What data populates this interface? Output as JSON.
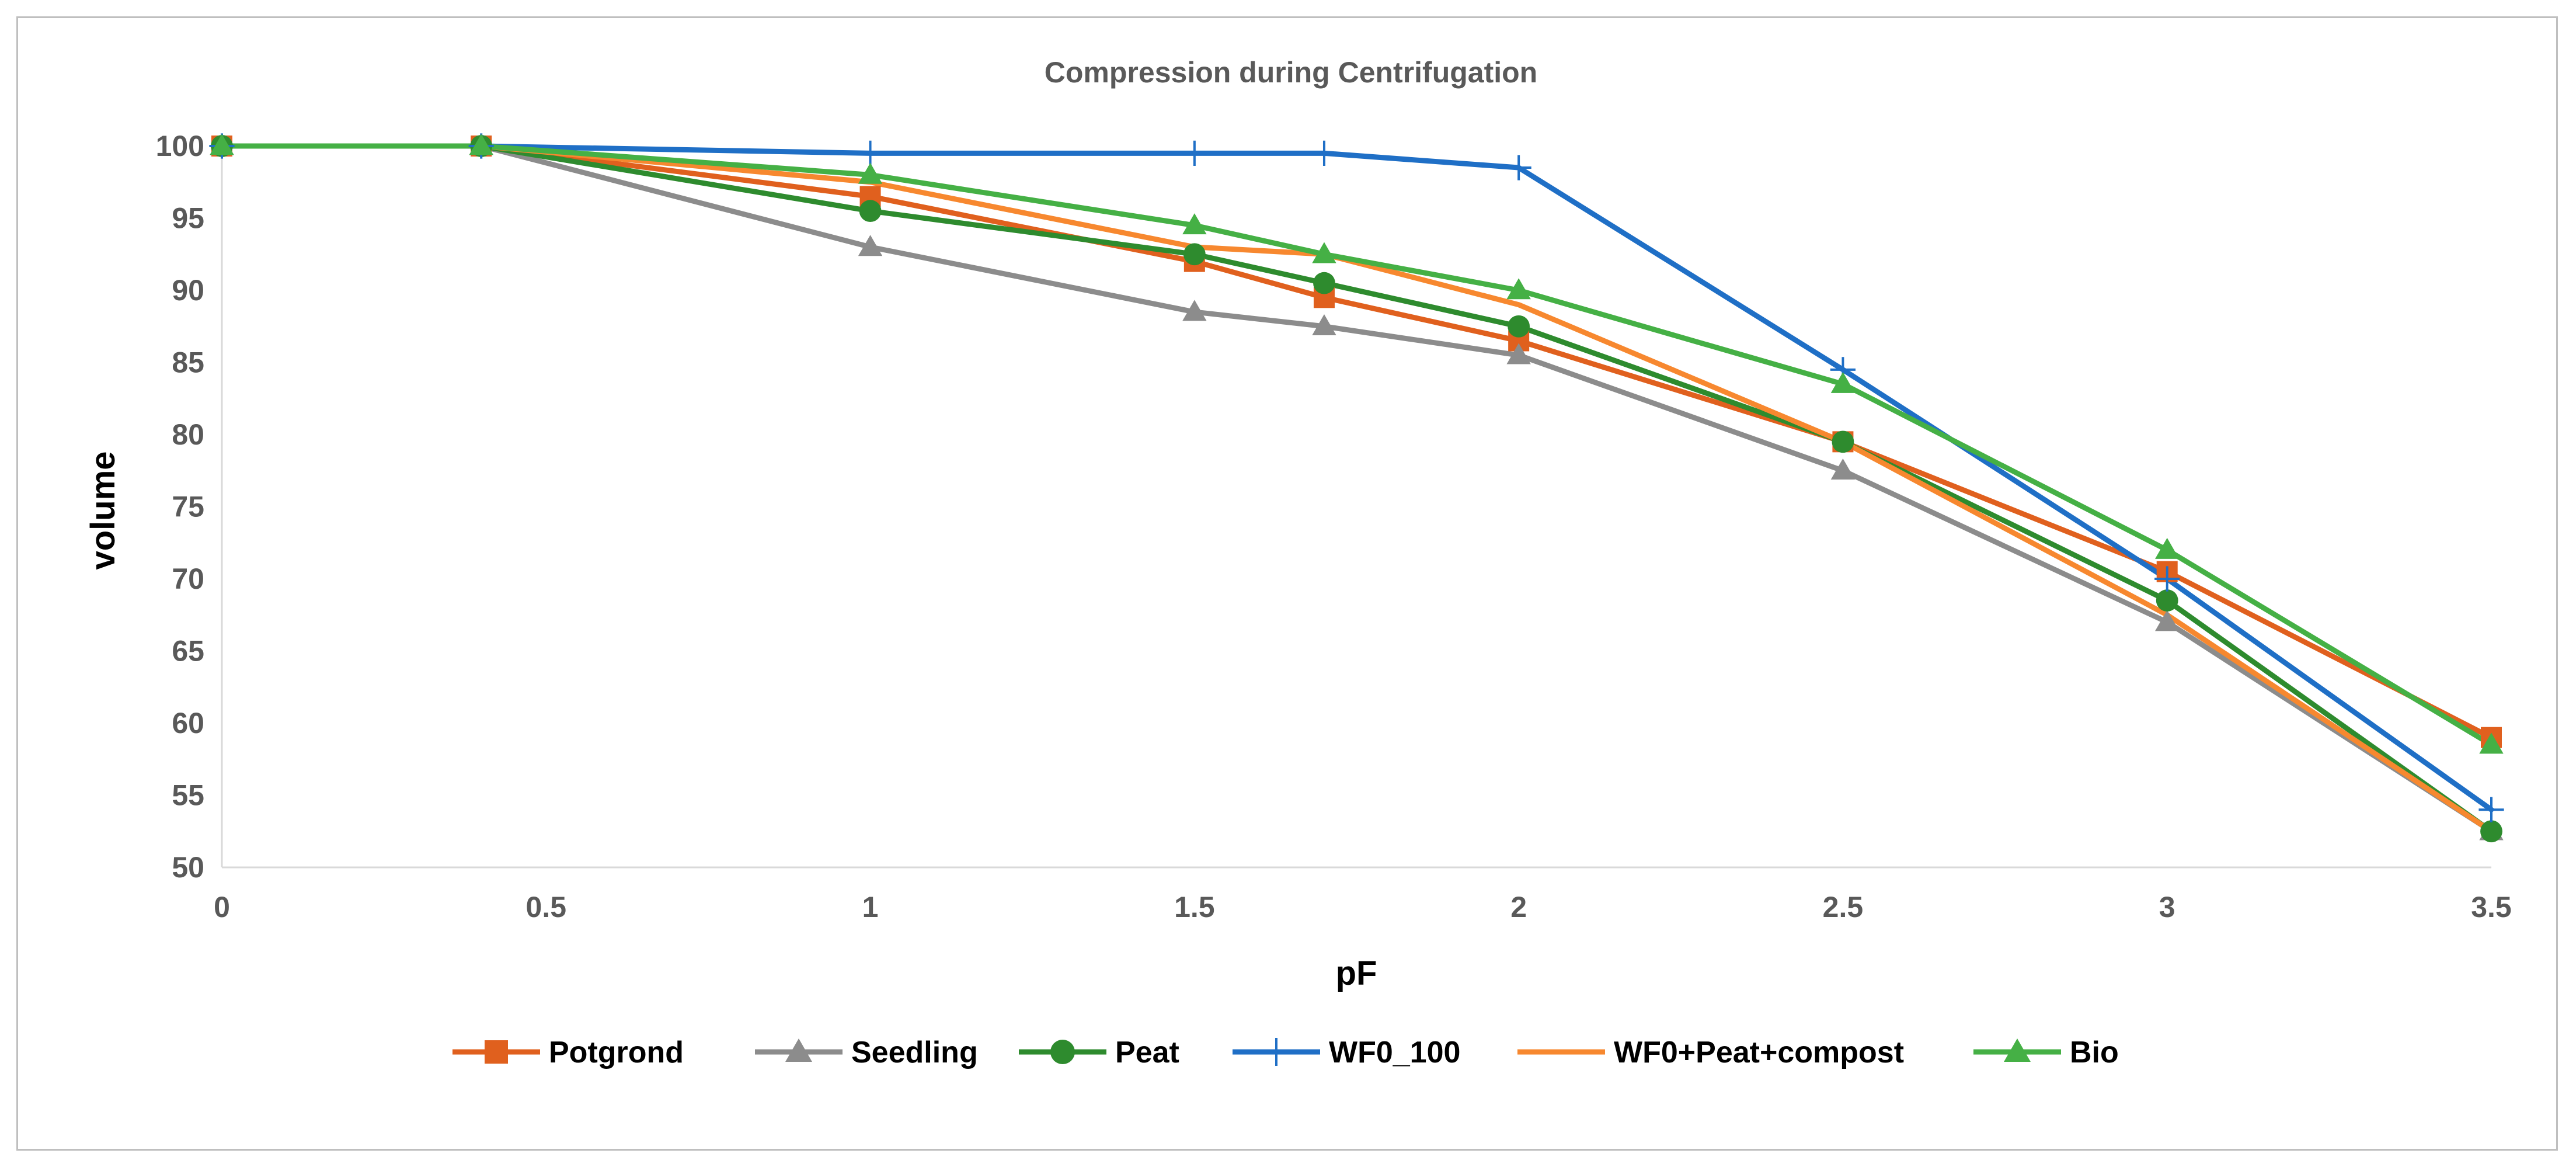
{
  "chart_data": {
    "type": "line",
    "title": "Compression during Centrifugation",
    "xlabel": "pF",
    "ylabel": "volume",
    "xlim": [
      0,
      3.5
    ],
    "ylim": [
      50,
      100
    ],
    "x_ticks": [
      "0",
      "0.5",
      "1",
      "1.5",
      "2",
      "2.5",
      "3",
      "3.5"
    ],
    "y_ticks": [
      "50",
      "55",
      "60",
      "65",
      "70",
      "75",
      "80",
      "85",
      "90",
      "95",
      "100"
    ],
    "x": [
      0,
      0.4,
      1,
      1.5,
      1.7,
      2,
      2.5,
      3,
      3.5
    ],
    "grid": false,
    "legend_position": "bottom",
    "series": [
      {
        "name": "Potgrond",
        "color": "#e0601e",
        "marker": "square",
        "values": [
          100,
          100,
          96.5,
          92,
          89.5,
          86.5,
          79.5,
          70.5,
          59
        ]
      },
      {
        "name": "Seedling",
        "color": "#8c8c8c",
        "marker": "triangle",
        "values": [
          100,
          100,
          93,
          88.5,
          87.5,
          85.5,
          77.5,
          67,
          52.5
        ]
      },
      {
        "name": "Peat",
        "color": "#2e8b2e",
        "marker": "circle",
        "values": [
          100,
          100,
          95.5,
          92.5,
          90.5,
          87.5,
          79.5,
          68.5,
          52.5
        ]
      },
      {
        "name": "WF0_100",
        "color": "#1f6fc6",
        "marker": "plus",
        "values": [
          100,
          100,
          99.5,
          99.5,
          99.5,
          98.5,
          84.5,
          70,
          54
        ]
      },
      {
        "name": "WF0+Peat+compost",
        "color": "#f7882f",
        "marker": "none",
        "values": [
          100,
          100,
          97.5,
          93,
          92.5,
          89,
          79.5,
          67.5,
          52.5
        ]
      },
      {
        "name": "Bio",
        "color": "#45b045",
        "marker": "triangle",
        "values": [
          100,
          100,
          98,
          94.5,
          92.5,
          90,
          83.5,
          72,
          58.5
        ]
      }
    ]
  }
}
